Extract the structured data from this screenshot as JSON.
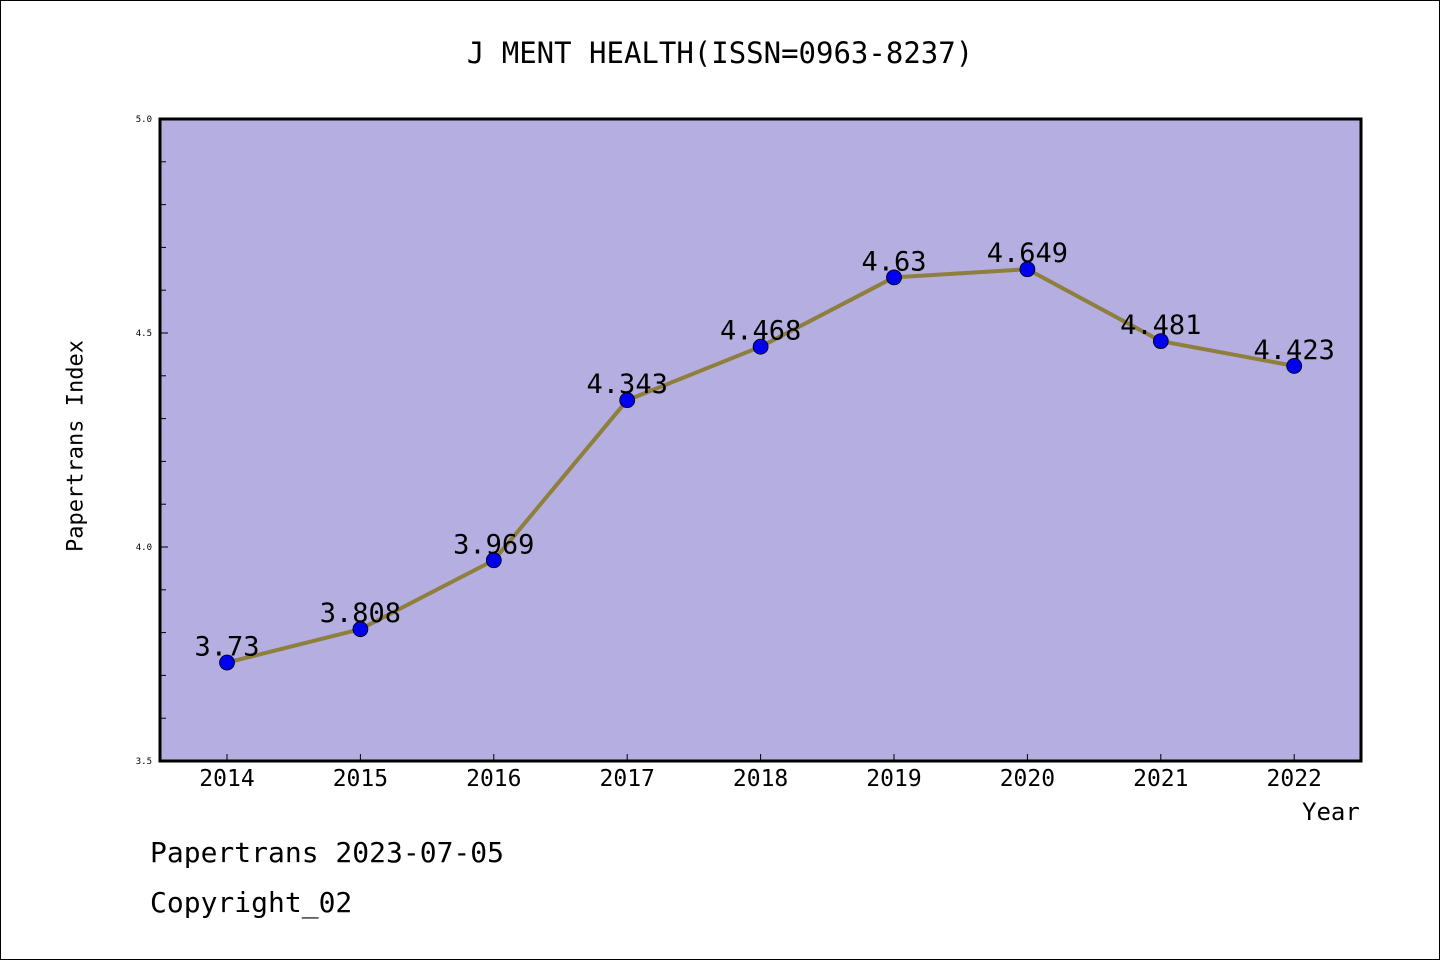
{
  "chart_data": {
    "type": "line",
    "title": "J MENT HEALTH(ISSN=0963-8237)",
    "xlabel": "Year",
    "ylabel": "Papertrans Index",
    "categories": [
      "2014",
      "2015",
      "2016",
      "2017",
      "2018",
      "2019",
      "2020",
      "2021",
      "2022"
    ],
    "values": [
      3.73,
      3.808,
      3.969,
      4.343,
      4.468,
      4.63,
      4.649,
      4.481,
      4.423
    ],
    "value_labels": [
      "3.73",
      "3.808",
      "3.969",
      "4.343",
      "4.468",
      "4.63",
      "4.649",
      "4.481",
      "4.423"
    ],
    "ylim": [
      3.5,
      5.0
    ],
    "y_ticks": [
      "3.5",
      "4.0",
      "4.5",
      "5.0"
    ],
    "grid": false,
    "colors": {
      "plot_background": "#b5aee1",
      "line": "#8e7f3c",
      "marker": "#0000ee"
    }
  },
  "footer": {
    "date_line": "Papertrans 2023-07-05",
    "copyright": "Copyright_02"
  }
}
